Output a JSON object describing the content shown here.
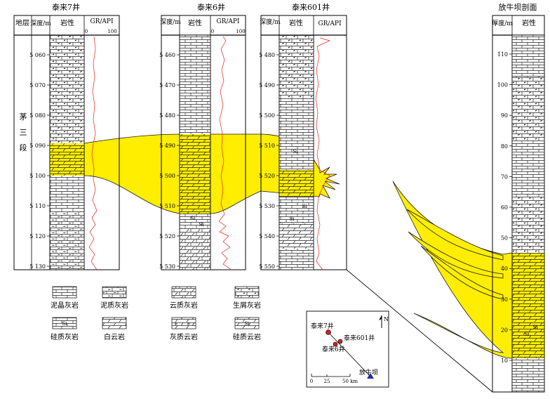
{
  "wells": [
    {
      "id": "w7",
      "name": "泰来7井",
      "headers": {
        "stratum": "地层",
        "depth": "深度/m",
        "lithology": "岩性",
        "log": "GR/API",
        "log_min": "0",
        "log_max": "100"
      },
      "formation": "茅三段",
      "depth_ticks": [
        "5 060",
        "5 070",
        "5 080",
        "5 090",
        "5 100",
        "5 110",
        "5 120",
        "5 130"
      ]
    },
    {
      "id": "w6",
      "name": "泰来6井",
      "headers": {
        "depth": "深度/m",
        "lithology": "岩性",
        "log": "GR/API",
        "log_min": "0",
        "log_max": "100"
      },
      "depth_ticks": [
        "5 460",
        "5 470",
        "5 480",
        "5 490",
        "5 500",
        "5 510",
        "5 520",
        "5 530"
      ],
      "markers": [
        "Si",
        "Si"
      ]
    },
    {
      "id": "w601",
      "name": "泰来601井",
      "headers": {
        "depth": "深度/m",
        "lithology": "岩性",
        "log": "GR/API"
      },
      "depth_ticks": [
        "5 480",
        "5 490",
        "5 500",
        "5 510",
        "5 520",
        "5 530",
        "5 540",
        "5 550"
      ],
      "markers": [
        "Si",
        "Si",
        "Si"
      ]
    },
    {
      "id": "fnb",
      "name": "放牛坝剖面",
      "headers": {
        "thickness": "厚度/m",
        "lithology": "岩性"
      },
      "thickness_ticks": [
        "110",
        "100",
        "90",
        "80",
        "70",
        "60",
        "50",
        "40",
        "30",
        "20",
        "10"
      ],
      "markers": [
        "Si",
        "Si"
      ]
    }
  ],
  "legend": [
    {
      "id": "argillaceous-crystalline-limestone",
      "label": "泥晶灰岩"
    },
    {
      "id": "muddy-limestone",
      "label": "泥质灰岩"
    },
    {
      "id": "dolomitic-limestone",
      "label": "云质灰岩"
    },
    {
      "id": "bioclastic-limestone",
      "label": "生屑灰岩"
    },
    {
      "id": "siliceous-limestone",
      "label": "硅质灰岩"
    },
    {
      "id": "dolomite",
      "label": "白云岩"
    },
    {
      "id": "calcareous-dolomite",
      "label": "灰质云岩"
    },
    {
      "id": "siliceous-dolomite",
      "label": "硅质云岩"
    }
  ],
  "legend_si": "Si",
  "map": {
    "north": "N",
    "locations": [
      "泰来7井",
      "泰来601井",
      "泰来6井",
      "放牛坝"
    ],
    "scale_labels": [
      "0",
      "25",
      "50 km"
    ]
  },
  "colors": {
    "dolomite_fill": "#ffee00",
    "dolomite_outline": "#1a1a1a",
    "gr_curve": "#e8221a",
    "location_dot": "#d42020",
    "location_triangle": "#1c2fa8"
  }
}
